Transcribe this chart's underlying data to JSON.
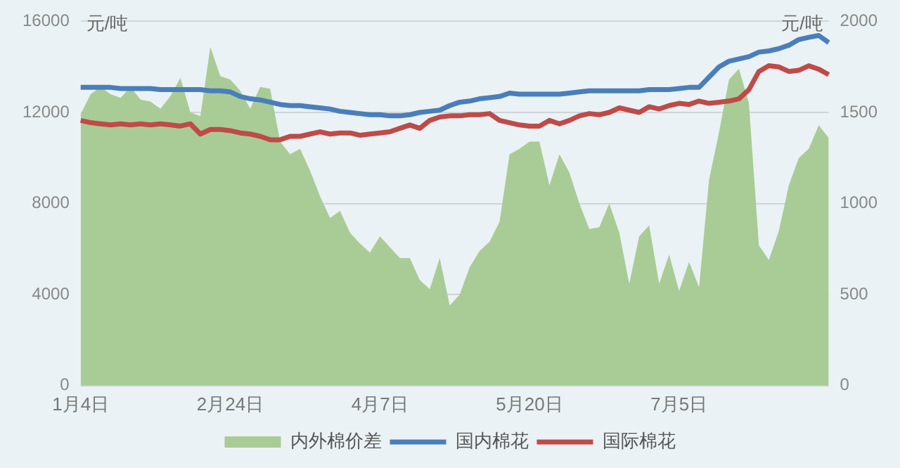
{
  "chart_data": {
    "type": "line",
    "ylabel": "元/吨",
    "y2label": "元/吨",
    "categories": [
      "1月4日",
      null,
      null,
      null,
      null,
      null,
      null,
      null,
      null,
      null,
      null,
      null,
      null,
      null,
      null,
      "2月24日",
      null,
      null,
      null,
      null,
      null,
      null,
      null,
      null,
      null,
      null,
      null,
      null,
      null,
      null,
      "4月7日",
      null,
      null,
      null,
      null,
      null,
      null,
      null,
      null,
      null,
      null,
      null,
      null,
      null,
      null,
      "5月20日",
      null,
      null,
      null,
      null,
      null,
      null,
      null,
      null,
      null,
      null,
      null,
      null,
      null,
      null,
      "7月5日",
      null,
      null,
      null,
      null,
      null,
      null,
      null,
      null,
      null,
      null,
      null,
      null,
      null,
      null,
      null
    ],
    "series": [
      {
        "name": "内外棉价差",
        "type": "area",
        "axis": "y2",
        "color": "#a9cc96",
        "values": [
          1490,
          1600,
          1640,
          1600,
          1580,
          1640,
          1570,
          1560,
          1520,
          1590,
          1690,
          1500,
          1480,
          1860,
          1700,
          1680,
          1620,
          1520,
          1640,
          1630,
          1340,
          1270,
          1300,
          1180,
          1040,
          920,
          960,
          840,
          780,
          730,
          820,
          760,
          700,
          700,
          580,
          530,
          700,
          440,
          500,
          650,
          740,
          790,
          900,
          1270,
          1300,
          1340,
          1340,
          1100,
          1270,
          1170,
          1000,
          860,
          870,
          1000,
          840,
          560,
          820,
          880,
          560,
          720,
          520,
          680,
          540,
          1130,
          1390,
          1680,
          1740,
          1550,
          770,
          690,
          850,
          1100,
          1250,
          1300,
          1430,
          1360
        ]
      },
      {
        "name": "国内棉花",
        "axis": "y",
        "color": "#4a7ebb",
        "values": [
          13100,
          13100,
          13100,
          13100,
          13050,
          13050,
          13050,
          13050,
          13000,
          13000,
          13000,
          13000,
          13000,
          12950,
          12950,
          12900,
          12700,
          12600,
          12550,
          12450,
          12350,
          12300,
          12300,
          12250,
          12200,
          12150,
          12050,
          12000,
          11950,
          11900,
          11900,
          11850,
          11850,
          11900,
          12000,
          12050,
          12100,
          12300,
          12450,
          12500,
          12600,
          12650,
          12700,
          12850,
          12800,
          12800,
          12800,
          12800,
          12800,
          12850,
          12900,
          12950,
          12950,
          12950,
          12950,
          12950,
          12950,
          13000,
          13000,
          13000,
          13050,
          13100,
          13100,
          13550,
          14000,
          14250,
          14350,
          14450,
          14650,
          14700,
          14800,
          14950,
          15200,
          15300,
          15380,
          15070
        ]
      },
      {
        "name": "国际棉花",
        "axis": "y",
        "color": "#be4b48",
        "values": [
          11650,
          11550,
          11500,
          11450,
          11500,
          11450,
          11500,
          11450,
          11500,
          11450,
          11400,
          11500,
          11050,
          11250,
          11250,
          11200,
          11100,
          11050,
          10950,
          10800,
          10800,
          10950,
          10950,
          11050,
          11150,
          11050,
          11100,
          11100,
          11000,
          11050,
          11100,
          11150,
          11300,
          11450,
          11300,
          11650,
          11800,
          11850,
          11850,
          11900,
          11900,
          11950,
          11650,
          11550,
          11450,
          11400,
          11400,
          11650,
          11500,
          11650,
          11850,
          11950,
          11900,
          12000,
          12200,
          12100,
          12000,
          12250,
          12150,
          12300,
          12400,
          12350,
          12500,
          12400,
          12450,
          12500,
          12600,
          13000,
          13800,
          14050,
          14000,
          13800,
          13850,
          14050,
          13900,
          13660
        ]
      }
    ],
    "ylim": [
      0,
      16000
    ],
    "yticks": [
      0,
      4000,
      8000,
      12000,
      16000
    ],
    "y2lim": [
      0,
      2000
    ],
    "y2ticks": [
      0,
      500,
      1000,
      1500,
      2000
    ],
    "grid": "y",
    "legend": "bottom",
    "marker": "none",
    "line_style": "solid"
  }
}
